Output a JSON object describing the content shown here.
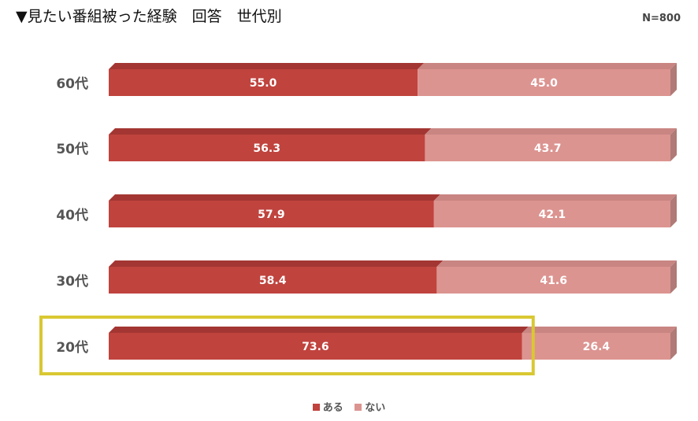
{
  "header": {
    "title": "▼見たい番組被った経験　回答　世代別",
    "sample": "N=800"
  },
  "colors": {
    "series_1": "#c0433e",
    "series_2": "#dc9490",
    "highlight": "#d9c832"
  },
  "highlighted_category": "20代",
  "chart_data": {
    "type": "bar",
    "orientation": "horizontal",
    "stacked": true,
    "percent": true,
    "categories": [
      "60代",
      "50代",
      "40代",
      "30代",
      "20代"
    ],
    "series": [
      {
        "name": "ある",
        "values": [
          55.0,
          56.3,
          57.9,
          58.4,
          73.6
        ]
      },
      {
        "name": "ない",
        "values": [
          45.0,
          43.7,
          42.1,
          41.6,
          26.4
        ]
      }
    ],
    "xlim": [
      0,
      100
    ],
    "grid": false,
    "legend_position": "bottom"
  }
}
